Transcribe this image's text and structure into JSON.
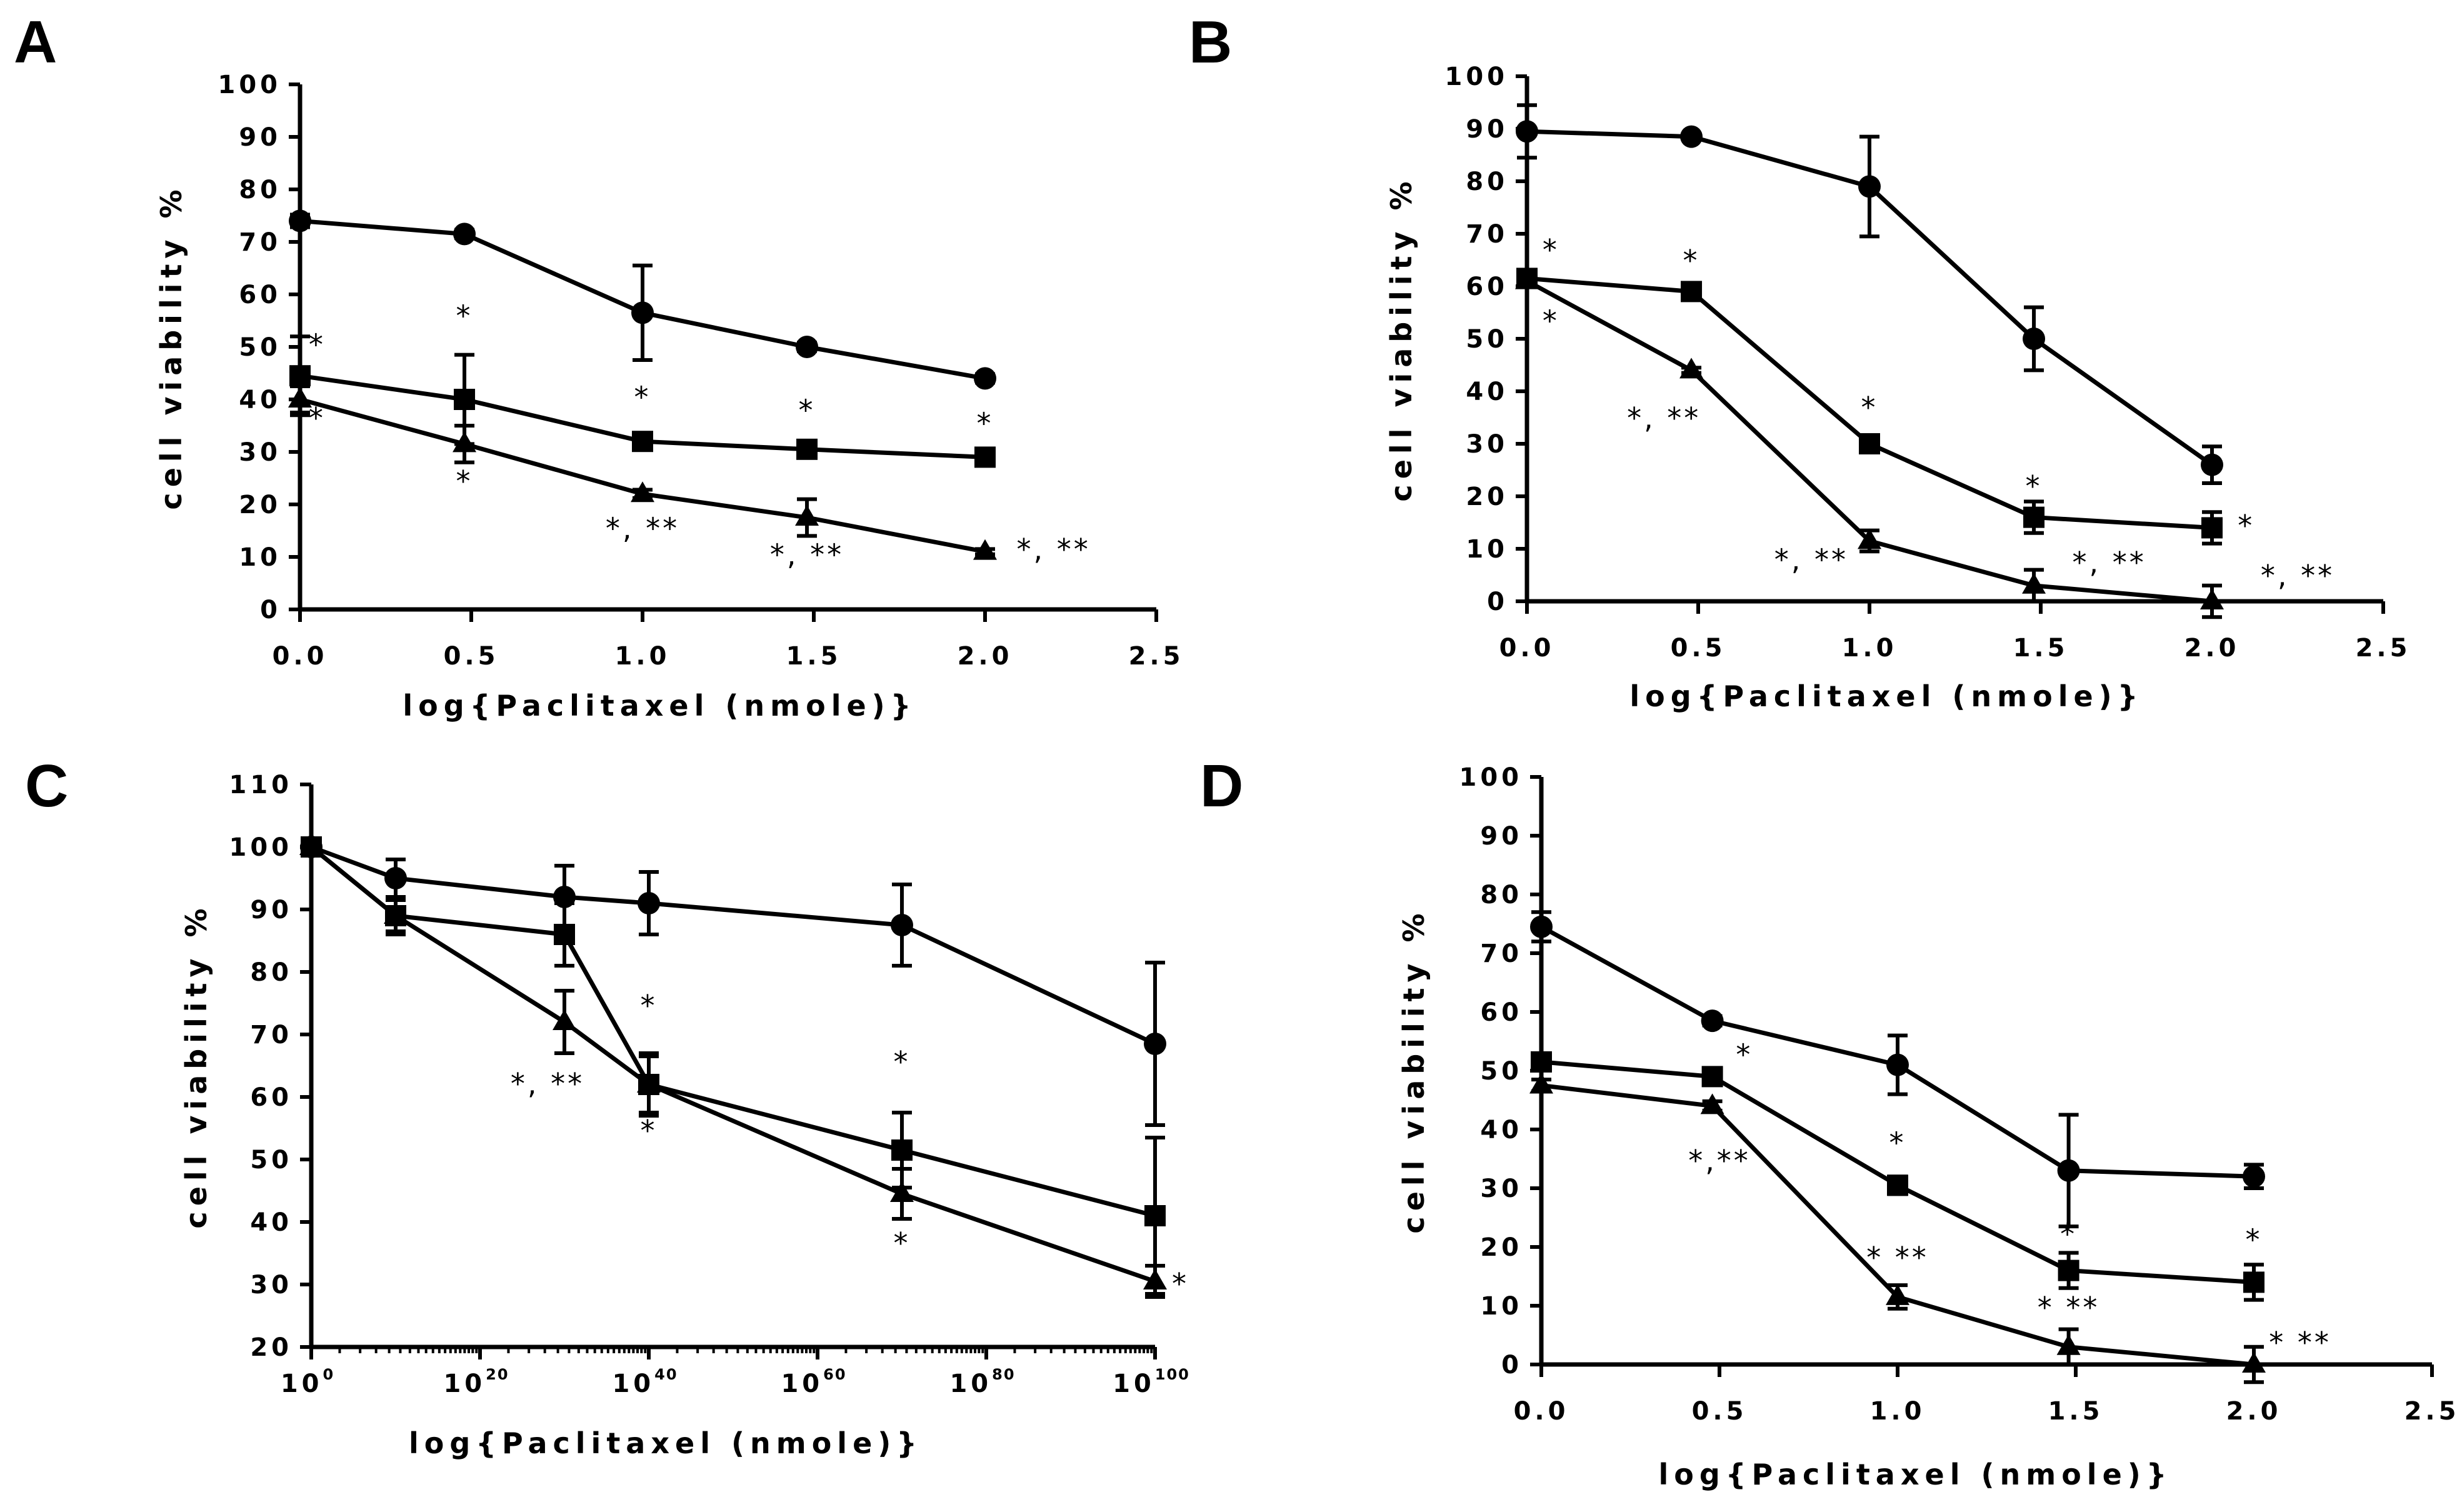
{
  "chart_data": [
    {
      "type": "line",
      "panel_label": "A",
      "xlabel": "log{Paclitaxel (nmole)}",
      "ylabel": "cell viability %",
      "xlim": [
        0,
        2.5
      ],
      "ylim": [
        0,
        100
      ],
      "xticks": [
        "0.0",
        "0.5",
        "1.0",
        "1.5",
        "2.0",
        "2.5"
      ],
      "yticks": [
        "0",
        "10",
        "20",
        "30",
        "40",
        "50",
        "60",
        "70",
        "80",
        "90",
        "100"
      ],
      "series": [
        {
          "marker": "circle",
          "x": [
            0,
            0.48,
            1.0,
            1.48,
            2.0
          ],
          "y": [
            74,
            71.5,
            56.5,
            50,
            44
          ],
          "err": [
            1.2,
            0.8,
            9,
            0.8,
            0.8
          ]
        },
        {
          "marker": "square",
          "x": [
            0,
            0.48,
            1.0,
            1.48,
            2.0
          ],
          "y": [
            44.5,
            40,
            32,
            30.5,
            29
          ],
          "err": [
            7.5,
            8.5,
            1,
            1.2,
            1
          ]
        },
        {
          "marker": "triangle",
          "x": [
            0,
            0.48,
            1.0,
            1.48,
            2.0
          ],
          "y": [
            40,
            31.5,
            22,
            17.5,
            11
          ],
          "err": [
            2.5,
            3.5,
            0.8,
            3.5,
            0.5
          ]
        }
      ],
      "annotations": [
        {
          "text": "*",
          "x": 0.05,
          "y": 48.5
        },
        {
          "text": "*",
          "x": 0.05,
          "y": 34.5
        },
        {
          "text": "*",
          "x": 0.48,
          "y": 54
        },
        {
          "text": "*",
          "x": 0.48,
          "y": 22.5
        },
        {
          "text": "*",
          "x": 1.0,
          "y": 38.5
        },
        {
          "text": "*, **",
          "x": 1.0,
          "y": 13.5
        },
        {
          "text": "*",
          "x": 1.48,
          "y": 36
        },
        {
          "text": "*, **",
          "x": 1.48,
          "y": 8.5
        },
        {
          "text": "*",
          "x": 2.0,
          "y": 33.5
        },
        {
          "text": "*, **",
          "x": 2.2,
          "y": 9.5
        }
      ]
    },
    {
      "type": "line",
      "panel_label": "B",
      "xlabel": "log{Paclitaxel (nmole)}",
      "ylabel": "cell viability %",
      "xlim": [
        0,
        2.5
      ],
      "ylim": [
        0,
        100
      ],
      "xticks": [
        "0.0",
        "0.5",
        "1.0",
        "1.5",
        "2.0",
        "2.5"
      ],
      "yticks": [
        "0",
        "10",
        "20",
        "30",
        "40",
        "50",
        "60",
        "70",
        "80",
        "90",
        "100"
      ],
      "series": [
        {
          "marker": "circle",
          "x": [
            0,
            0.48,
            1.0,
            1.48,
            2.0
          ],
          "y": [
            89.5,
            88.5,
            79,
            50,
            26
          ],
          "err": [
            5,
            0.5,
            9.5,
            6,
            3.5
          ]
        },
        {
          "marker": "square",
          "x": [
            0,
            0.48,
            1.0,
            1.48,
            2.0
          ],
          "y": [
            61.5,
            59,
            30,
            16,
            14
          ],
          "err": [
            1,
            0.8,
            1.5,
            3,
            3
          ]
        },
        {
          "marker": "triangle",
          "x": [
            0,
            0.48,
            1.0,
            1.48,
            2.0
          ],
          "y": [
            61,
            44,
            11.5,
            3,
            0
          ],
          "err": [
            1,
            0.5,
            2,
            3,
            3
          ]
        }
      ],
      "annotations": [
        {
          "text": "*",
          "x": 0.07,
          "y": 65
        },
        {
          "text": "*",
          "x": 0.07,
          "y": 51.5
        },
        {
          "text": "*",
          "x": 0.48,
          "y": 63
        },
        {
          "text": "*, **",
          "x": 0.4,
          "y": 33
        },
        {
          "text": "*",
          "x": 1.0,
          "y": 35
        },
        {
          "text": "*, **",
          "x": 0.83,
          "y": 6
        },
        {
          "text": "*",
          "x": 1.48,
          "y": 20
        },
        {
          "text": "*, **",
          "x": 1.7,
          "y": 5.5
        },
        {
          "text": "*",
          "x": 2.1,
          "y": 12.5
        },
        {
          "text": "*, **",
          "x": 2.25,
          "y": 3
        }
      ]
    },
    {
      "type": "line",
      "panel_label": "C",
      "xlabel": "log{Paclitaxel (nmole)}",
      "ylabel": "cell viability %",
      "xscale": "log",
      "xlim": [
        0,
        100
      ],
      "ylim": [
        20,
        110
      ],
      "xticks": [
        {
          "base": "10",
          "exp": "0"
        },
        {
          "base": "10",
          "exp": "20"
        },
        {
          "base": "10",
          "exp": "40"
        },
        {
          "base": "10",
          "exp": "60"
        },
        {
          "base": "10",
          "exp": "80"
        },
        {
          "base": "10",
          "exp": "100"
        }
      ],
      "yticks": [
        "20",
        "30",
        "40",
        "50",
        "60",
        "70",
        "80",
        "90",
        "100",
        "110"
      ],
      "series": [
        {
          "marker": "circle",
          "x": [
            0,
            10,
            30,
            40,
            70,
            100
          ],
          "y": [
            100,
            95,
            92,
            91,
            87.5,
            68.5
          ],
          "err": [
            1,
            3,
            5,
            5,
            6.5,
            13
          ]
        },
        {
          "marker": "square",
          "x": [
            0,
            10,
            30,
            40,
            70,
            100
          ],
          "y": [
            100,
            89,
            86,
            62,
            51.5,
            41
          ],
          "err": [
            1,
            2.5,
            5,
            5,
            6,
            12.5
          ]
        },
        {
          "marker": "triangle",
          "x": [
            0,
            10,
            30,
            40,
            70,
            100
          ],
          "y": [
            100,
            89,
            72,
            62,
            44.5,
            30.5
          ],
          "err": [
            1,
            3,
            5,
            4.5,
            4,
            2.5
          ]
        }
      ],
      "annotations": [
        {
          "text": "*",
          "x": 40,
          "y": 73
        },
        {
          "text": "*, **",
          "x": 28,
          "y": 60.5
        },
        {
          "text": "*",
          "x": 40,
          "y": 53
        },
        {
          "text": "*",
          "x": 70,
          "y": 64
        },
        {
          "text": "*",
          "x": 70,
          "y": 35
        },
        {
          "text": "*",
          "x": 103,
          "y": 28.5
        }
      ]
    },
    {
      "type": "line",
      "panel_label": "D",
      "xlabel": "log{Paclitaxel (nmole)}",
      "ylabel": "cell viability %",
      "xlim": [
        0,
        2.5
      ],
      "ylim": [
        0,
        100
      ],
      "xticks": [
        "0.0",
        "0.5",
        "1.0",
        "1.5",
        "2.0",
        "2.5"
      ],
      "yticks": [
        "0",
        "10",
        "20",
        "30",
        "40",
        "50",
        "60",
        "70",
        "80",
        "90",
        "100"
      ],
      "series": [
        {
          "marker": "circle",
          "x": [
            0,
            0.48,
            1.0,
            1.48,
            2.0
          ],
          "y": [
            74.5,
            58.5,
            51,
            33,
            32
          ],
          "err": [
            2.5,
            0.8,
            5,
            9.5,
            2
          ]
        },
        {
          "marker": "square",
          "x": [
            0,
            0.48,
            1.0,
            1.48,
            2.0
          ],
          "y": [
            51.5,
            49,
            30.5,
            16,
            14
          ],
          "err": [
            1,
            1,
            1.5,
            3,
            3
          ]
        },
        {
          "marker": "triangle",
          "x": [
            0,
            0.48,
            1.0,
            1.48,
            2.0
          ],
          "y": [
            47.5,
            44,
            11.5,
            3,
            0
          ],
          "err": [
            1,
            0.8,
            2,
            3,
            3
          ]
        }
      ],
      "annotations": [
        {
          "text": "*",
          "x": 0.57,
          "y": 51
        },
        {
          "text": "*,**",
          "x": 0.5,
          "y": 33
        },
        {
          "text": "*",
          "x": 1.0,
          "y": 36
        },
        {
          "text": "* **",
          "x": 1.0,
          "y": 16.5
        },
        {
          "text": "*",
          "x": 1.48,
          "y": 20.5
        },
        {
          "text": "* **",
          "x": 1.48,
          "y": 8
        },
        {
          "text": "*",
          "x": 2.0,
          "y": 19.5
        },
        {
          "text": "* **",
          "x": 2.13,
          "y": 2
        }
      ]
    }
  ]
}
